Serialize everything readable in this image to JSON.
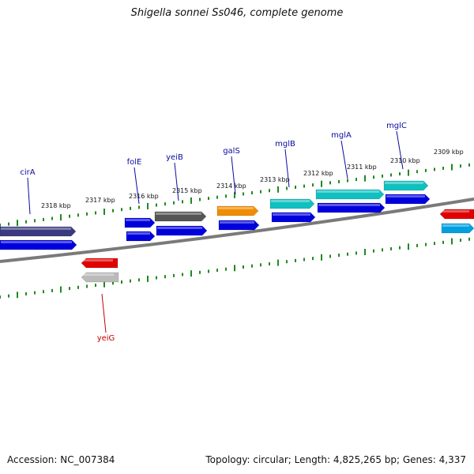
{
  "header": {
    "title": "Shigella sonnei Ss046, complete genome"
  },
  "footer": {
    "accession": "Accession: NC_007384",
    "topology": "Topology: circular; Length: 4,825,265 bp; Genes: 4,337"
  },
  "colors": {
    "backbone": "#7a7a7a",
    "tick": "#1f8a1f",
    "label_plus": "#0a0aa0",
    "label_minus": "#c00000",
    "cds_blue": "#0000dd",
    "gene_navy": "#3a3a80",
    "gene_gray": "#555555",
    "gene_orange": "#f08c00",
    "gene_teal": "#10c0c0",
    "gene_red": "#e00000",
    "gene_cyan": "#00a0e0"
  },
  "scale_labels": [
    "2318 kbp",
    "2317 kbp",
    "2316 kbp",
    "2315 kbp",
    "2314 kbp",
    "2313 kbp",
    "2312 kbp",
    "2311 kbp",
    "2310 kbp",
    "2309 kbp"
  ],
  "gene_labels_plus": [
    "cirA",
    "folE",
    "yeiB",
    "galS",
    "mglB",
    "mglA",
    "mglC"
  ],
  "gene_labels_minus": [
    "yeiG"
  ]
}
